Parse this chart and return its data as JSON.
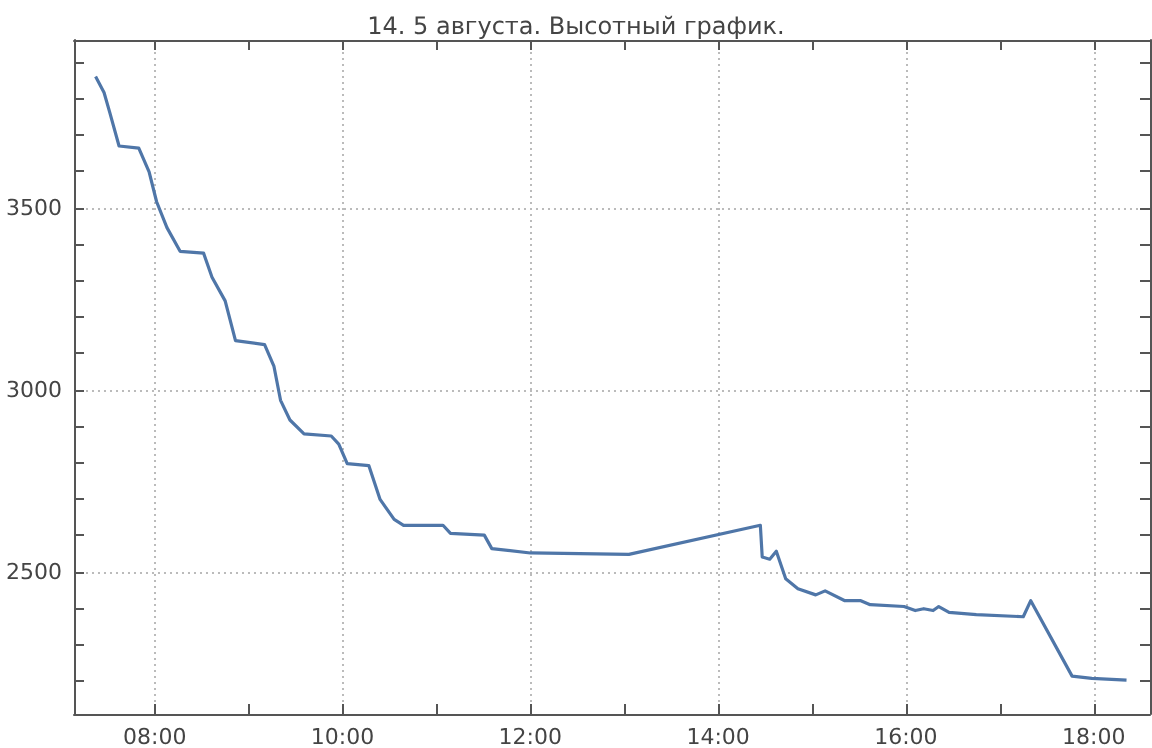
{
  "chart_data": {
    "type": "line",
    "title": "14. 5 августа. Высотный график.",
    "series": [
      {
        "color": "#4f76a8",
        "x": [
          7.37,
          7.46,
          7.52,
          7.62,
          7.83,
          7.94,
          8.02,
          8.13,
          8.27,
          8.52,
          8.61,
          8.75,
          8.86,
          9.17,
          9.27,
          9.34,
          9.44,
          9.59,
          9.88,
          9.96,
          10.05,
          10.28,
          10.4,
          10.55,
          10.65,
          11.07,
          11.15,
          11.51,
          11.59,
          12.0,
          13.05,
          14.45,
          14.47,
          14.55,
          14.62,
          14.72,
          14.85,
          15.04,
          15.14,
          15.35,
          15.52,
          15.62,
          15.98,
          16.1,
          16.19,
          16.29,
          16.35,
          16.46,
          16.75,
          17.25,
          17.33,
          17.77,
          17.98,
          18.35
        ],
        "values": [
          3860,
          3816,
          3762,
          3669,
          3663,
          3598,
          3516,
          3445,
          3380,
          3375,
          3309,
          3244,
          3135,
          3124,
          3064,
          2971,
          2917,
          2879,
          2873,
          2851,
          2797,
          2792,
          2699,
          2644,
          2628,
          2628,
          2606,
          2601,
          2564,
          2552,
          2548,
          2628,
          2541,
          2535,
          2557,
          2481,
          2454,
          2437,
          2448,
          2421,
          2421,
          2410,
          2405,
          2394,
          2399,
          2394,
          2405,
          2389,
          2383,
          2377,
          2421,
          2214,
          2208,
          2203
        ]
      }
    ],
    "xlim": [
      7.14,
      18.6
    ],
    "xticks": [
      {
        "value": 8,
        "label": "08:00"
      },
      {
        "value": 9,
        "label": null
      },
      {
        "value": 10,
        "label": "10:00"
      },
      {
        "value": 11,
        "label": null
      },
      {
        "value": 12,
        "label": "12:00"
      },
      {
        "value": 13,
        "label": null
      },
      {
        "value": 14,
        "label": "14:00"
      },
      {
        "value": 15,
        "label": null
      },
      {
        "value": 16,
        "label": "16:00"
      },
      {
        "value": 17,
        "label": null
      },
      {
        "value": 18,
        "label": "18:00"
      }
    ],
    "ylim": [
      2110,
      3960
    ],
    "yticks": [
      {
        "value": 2200,
        "label": null
      },
      {
        "value": 2300,
        "label": null
      },
      {
        "value": 2400,
        "label": null
      },
      2500,
      {
        "value": 2600,
        "label": null
      },
      {
        "value": 2700,
        "label": null
      },
      {
        "value": 2800,
        "label": null
      },
      {
        "value": 2900,
        "label": null
      },
      3000,
      {
        "value": 3100,
        "label": null
      },
      {
        "value": 3200,
        "label": null
      },
      {
        "value": 3300,
        "label": null
      },
      {
        "value": 3400,
        "label": null
      },
      3500,
      {
        "value": 3600,
        "label": null
      },
      {
        "value": 3700,
        "label": null
      },
      {
        "value": 3800,
        "label": null
      },
      {
        "value": 3900,
        "label": null
      }
    ],
    "grid": true,
    "marker": "none",
    "line_style": "solid"
  }
}
